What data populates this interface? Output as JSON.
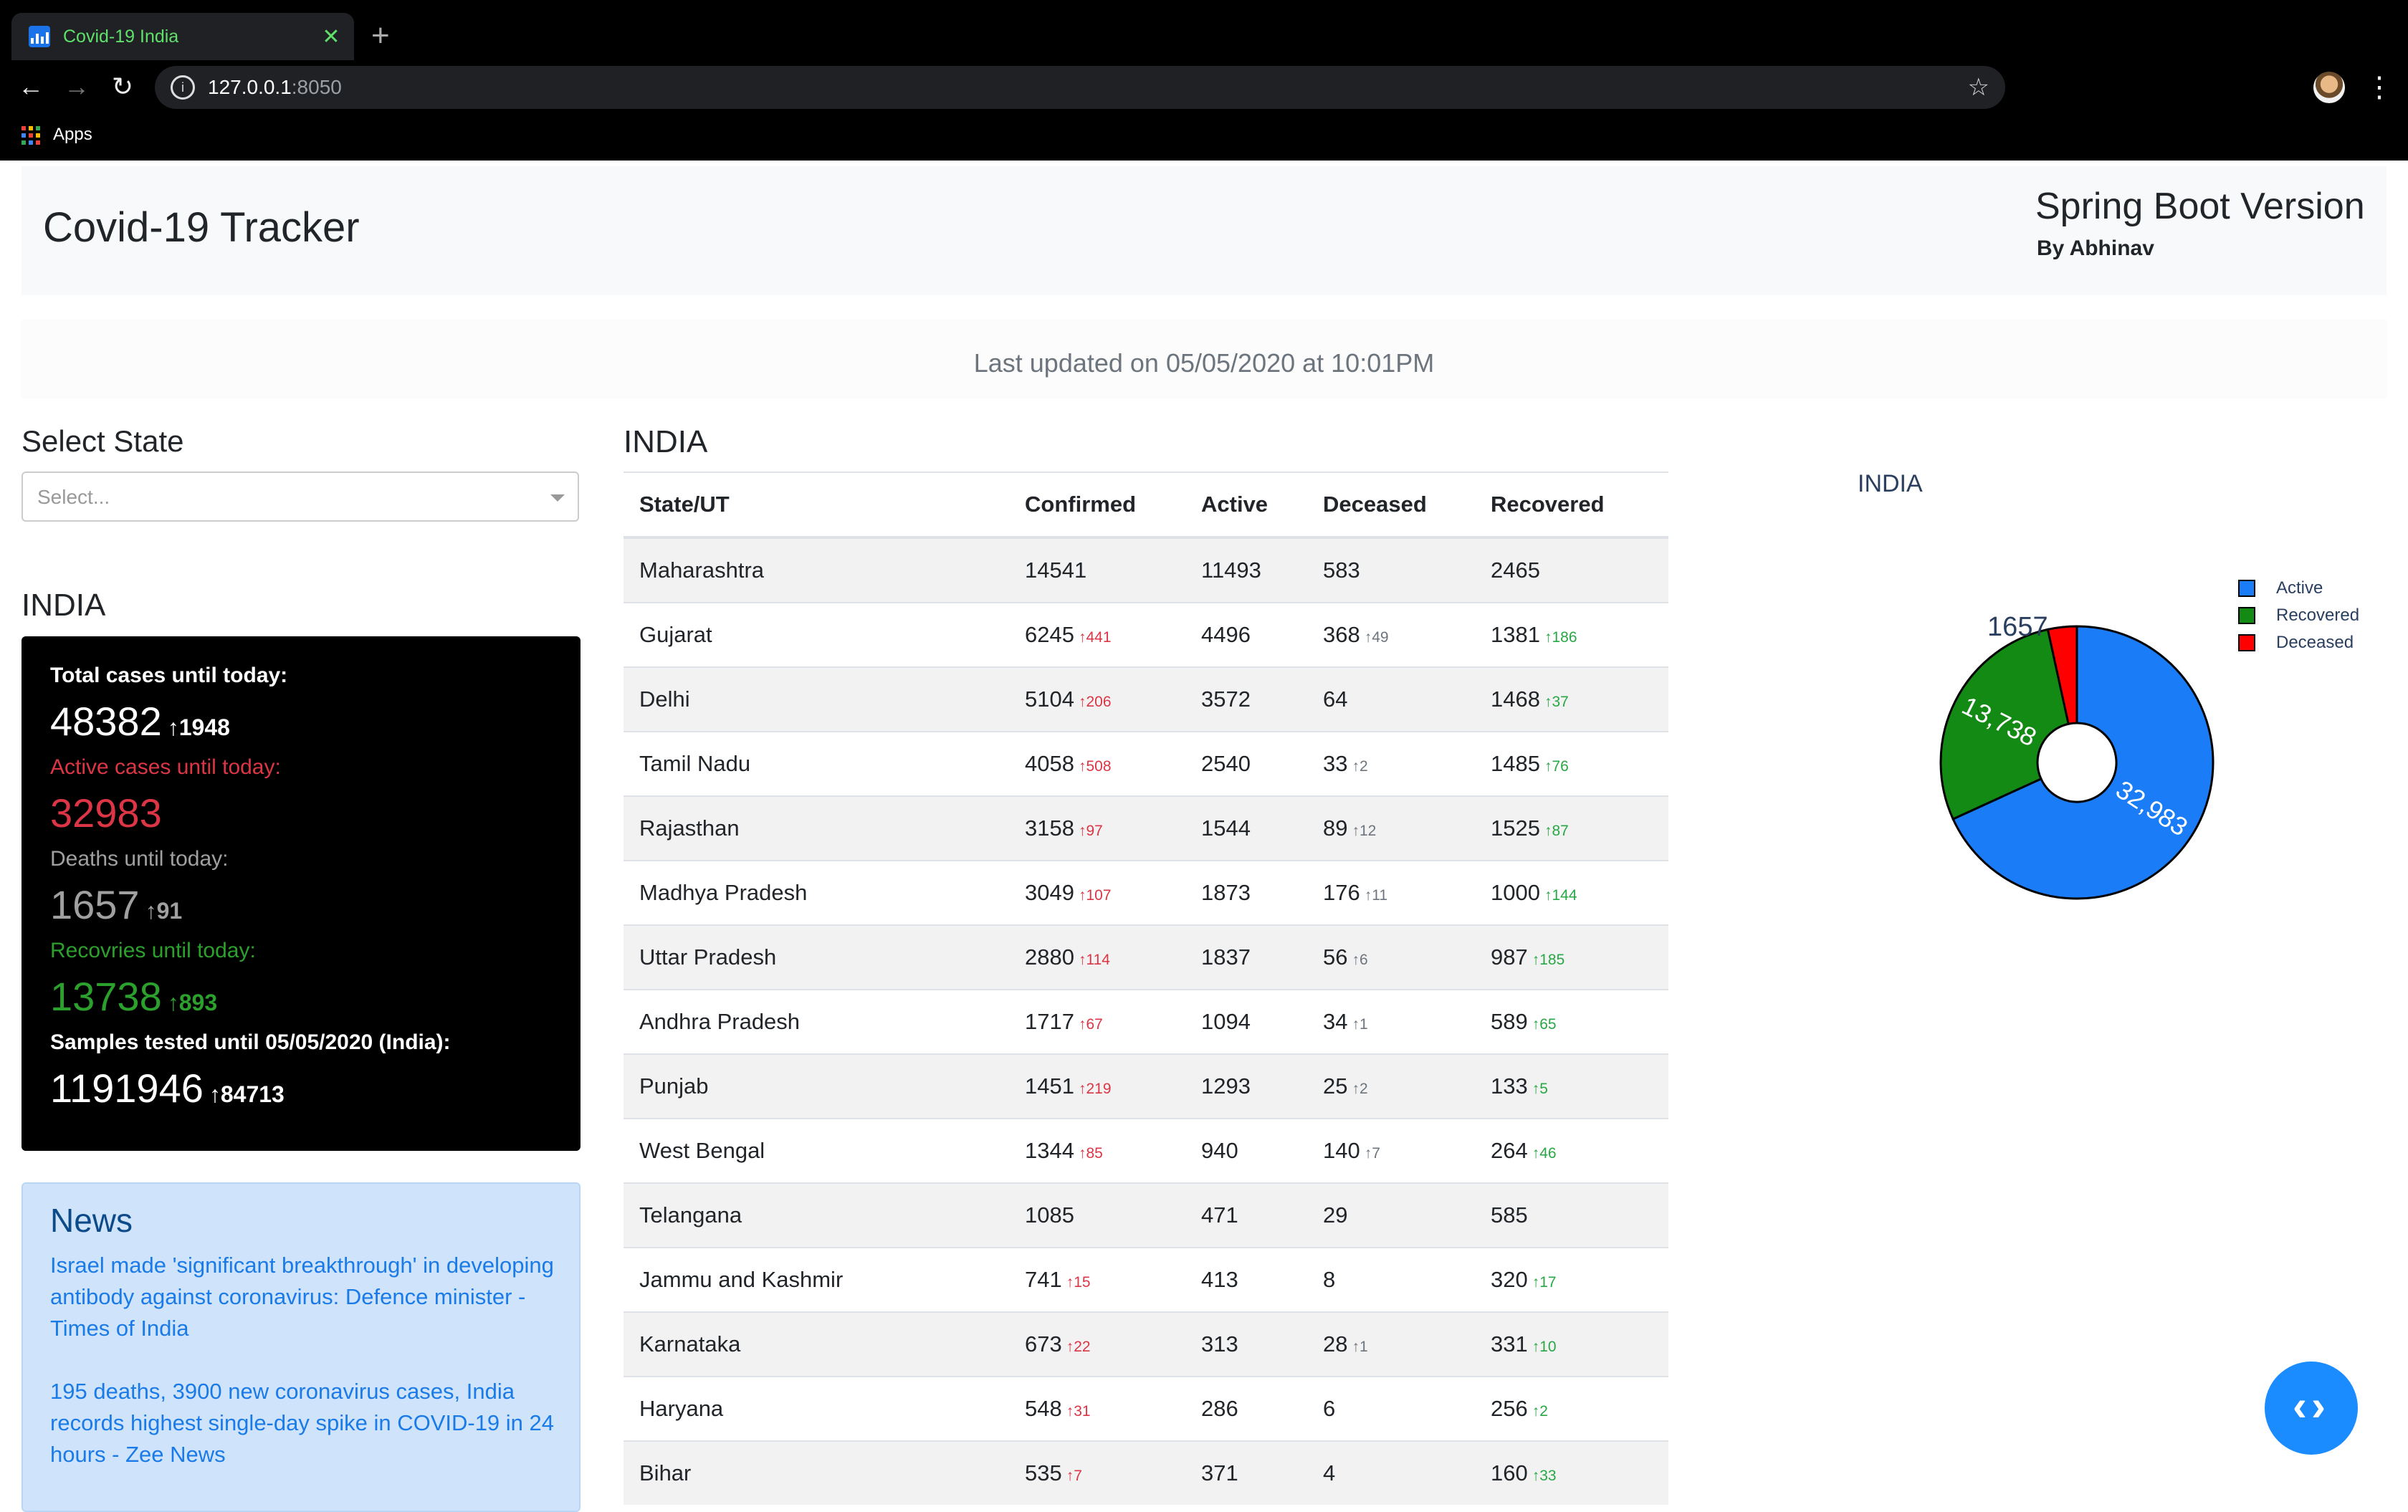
{
  "browser": {
    "tab_title": "Covid-19 India",
    "url_host": "127.0.0.1",
    "url_port": ":8050",
    "bookmark_apps": "Apps"
  },
  "header": {
    "title": "Covid-19 Tracker",
    "version": "Spring Boot Version",
    "author": "By Abhinav"
  },
  "last_updated": "Last updated on 05/05/2020 at 10:01PM",
  "state_select": {
    "label": "Select State",
    "placeholder": "Select..."
  },
  "summary": {
    "heading": "INDIA",
    "total_label": "Total cases until today:",
    "total_value": "48382",
    "total_delta": "↑1948",
    "active_label": "Active cases until today:",
    "active_value": "32983",
    "deaths_label": "Deaths until today:",
    "deaths_value": "1657",
    "deaths_delta": "↑91",
    "recovered_label": "Recovries until today:",
    "recovered_value": "13738",
    "recovered_delta": "↑893",
    "samples_label": "Samples tested until 05/05/2020 (India):",
    "samples_value": "1191946",
    "samples_delta": "↑84713"
  },
  "news": {
    "title": "News",
    "items": [
      "Israel made 'significant breakthrough' in developing antibody against coronavirus: Defence minister - Times of India",
      "195 deaths, 3900 new coronavirus cases, India records highest single-day spike in COVID-19 in 24 hours - Zee News"
    ]
  },
  "table": {
    "heading": "INDIA",
    "columns": [
      "State/UT",
      "Confirmed",
      "Active",
      "Deceased",
      "Recovered"
    ],
    "rows": [
      {
        "state": "Maharashtra",
        "confirmed": "14541",
        "confirmed_delta": "",
        "active": "11493",
        "deceased": "583",
        "deceased_delta": "",
        "recovered": "2465",
        "recovered_delta": ""
      },
      {
        "state": "Gujarat",
        "confirmed": "6245",
        "confirmed_delta": "↑441",
        "active": "4496",
        "deceased": "368",
        "deceased_delta": "↑49",
        "recovered": "1381",
        "recovered_delta": "↑186"
      },
      {
        "state": "Delhi",
        "confirmed": "5104",
        "confirmed_delta": "↑206",
        "active": "3572",
        "deceased": "64",
        "deceased_delta": "",
        "recovered": "1468",
        "recovered_delta": "↑37"
      },
      {
        "state": "Tamil Nadu",
        "confirmed": "4058",
        "confirmed_delta": "↑508",
        "active": "2540",
        "deceased": "33",
        "deceased_delta": "↑2",
        "recovered": "1485",
        "recovered_delta": "↑76"
      },
      {
        "state": "Rajasthan",
        "confirmed": "3158",
        "confirmed_delta": "↑97",
        "active": "1544",
        "deceased": "89",
        "deceased_delta": "↑12",
        "recovered": "1525",
        "recovered_delta": "↑87"
      },
      {
        "state": "Madhya Pradesh",
        "confirmed": "3049",
        "confirmed_delta": "↑107",
        "active": "1873",
        "deceased": "176",
        "deceased_delta": "↑11",
        "recovered": "1000",
        "recovered_delta": "↑144"
      },
      {
        "state": "Uttar Pradesh",
        "confirmed": "2880",
        "confirmed_delta": "↑114",
        "active": "1837",
        "deceased": "56",
        "deceased_delta": "↑6",
        "recovered": "987",
        "recovered_delta": "↑185"
      },
      {
        "state": "Andhra Pradesh",
        "confirmed": "1717",
        "confirmed_delta": "↑67",
        "active": "1094",
        "deceased": "34",
        "deceased_delta": "↑1",
        "recovered": "589",
        "recovered_delta": "↑65"
      },
      {
        "state": "Punjab",
        "confirmed": "1451",
        "confirmed_delta": "↑219",
        "active": "1293",
        "deceased": "25",
        "deceased_delta": "↑2",
        "recovered": "133",
        "recovered_delta": "↑5"
      },
      {
        "state": "West Bengal",
        "confirmed": "1344",
        "confirmed_delta": "↑85",
        "active": "940",
        "deceased": "140",
        "deceased_delta": "↑7",
        "recovered": "264",
        "recovered_delta": "↑46"
      },
      {
        "state": "Telangana",
        "confirmed": "1085",
        "confirmed_delta": "",
        "active": "471",
        "deceased": "29",
        "deceased_delta": "",
        "recovered": "585",
        "recovered_delta": ""
      },
      {
        "state": "Jammu and Kashmir",
        "confirmed": "741",
        "confirmed_delta": "↑15",
        "active": "413",
        "deceased": "8",
        "deceased_delta": "",
        "recovered": "320",
        "recovered_delta": "↑17"
      },
      {
        "state": "Karnataka",
        "confirmed": "673",
        "confirmed_delta": "↑22",
        "active": "313",
        "deceased": "28",
        "deceased_delta": "↑1",
        "recovered": "331",
        "recovered_delta": "↑10"
      },
      {
        "state": "Haryana",
        "confirmed": "548",
        "confirmed_delta": "↑31",
        "active": "286",
        "deceased": "6",
        "deceased_delta": "",
        "recovered": "256",
        "recovered_delta": "↑2"
      },
      {
        "state": "Bihar",
        "confirmed": "535",
        "confirmed_delta": "↑7",
        "active": "371",
        "deceased": "4",
        "deceased_delta": "",
        "recovered": "160",
        "recovered_delta": "↑33"
      }
    ]
  },
  "colors": {
    "active": "#1a7cf7",
    "recovered": "#138a13",
    "deceased": "#ff0000"
  },
  "chart_data": {
    "type": "pie",
    "title": "INDIA",
    "hole": true,
    "categories": [
      "Active",
      "Recovered",
      "Deceased"
    ],
    "values": [
      32983,
      13738,
      1657
    ],
    "labels": [
      "32,983",
      "13,738",
      "1657"
    ],
    "legend": "top-right"
  }
}
